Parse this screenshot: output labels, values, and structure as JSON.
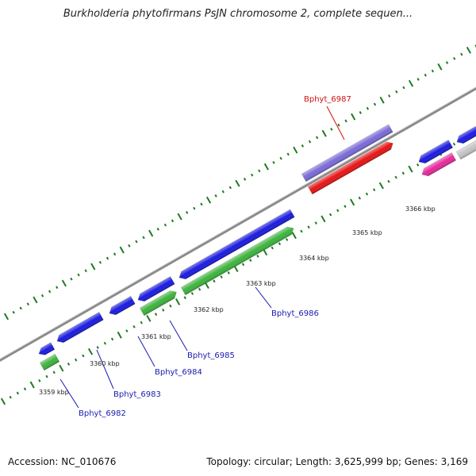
{
  "header": {
    "title": "Burkholderia phytofirmans PsJN chromosome 2, complete sequen..."
  },
  "footer": {
    "accession": "Accession: NC_010676",
    "summary": "Topology: circular; Length: 3,625,999 bp; Genes: 3,169"
  },
  "colors": {
    "backbone": "#8a8a8a",
    "ticks": "#1f7a1f",
    "gene_blue": "#1a1ae0",
    "gene_green": "#3cb43c",
    "gene_red": "#e81414",
    "gene_purple": "#7a6ad8",
    "gene_pink": "#e8289a",
    "gene_grey": "#c4c4c4",
    "label_blue": "#1a1ab0",
    "label_red": "#d01010"
  },
  "scale_labels": [
    "3359 kbp",
    "3360 kbp",
    "3361 kbp",
    "3362 kbp",
    "3363 kbp",
    "3364 kbp",
    "3365 kbp",
    "3366 kbp"
  ],
  "gene_labels": [
    {
      "name": "Bphyt_6982",
      "color": "blue"
    },
    {
      "name": "Bphyt_6983",
      "color": "blue"
    },
    {
      "name": "Bphyt_6984",
      "color": "blue"
    },
    {
      "name": "Bphyt_6985",
      "color": "blue"
    },
    {
      "name": "Bphyt_6986",
      "color": "blue"
    },
    {
      "name": "Bphyt_6987",
      "color": "red"
    }
  ]
}
